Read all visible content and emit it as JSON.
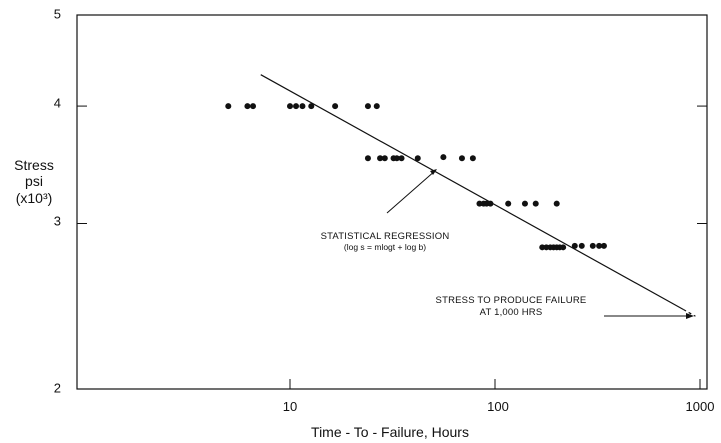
{
  "chart_data": {
    "type": "scatter",
    "xlabel": "Time - To - Failure, Hours",
    "ylabel_lines": [
      "Stress",
      "psi",
      "(x10³)"
    ],
    "x_scale": "log",
    "y_scale": "log",
    "xlim": [
      1,
      1000
    ],
    "ylim": [
      2,
      5
    ],
    "x_ticks": [
      10,
      100,
      1000
    ],
    "x_tick_labels": [
      "10",
      "100",
      "1000"
    ],
    "y_ticks": [
      2,
      3,
      4,
      5
    ],
    "y_tick_labels": [
      "2",
      "3",
      "4",
      "5"
    ],
    "grid": false,
    "series": [
      {
        "points": [
          [
            5.0,
            4.0
          ],
          [
            6.2,
            4.0
          ],
          [
            6.6,
            4.0
          ],
          [
            10.0,
            4.0
          ],
          [
            10.7,
            4.0
          ],
          [
            11.5,
            4.0
          ],
          [
            12.7,
            4.0
          ],
          [
            16.6,
            4.0
          ],
          [
            24.0,
            4.0
          ],
          [
            26.5,
            4.0
          ],
          [
            24.0,
            3.52
          ],
          [
            27.5,
            3.52
          ],
          [
            29.0,
            3.52
          ],
          [
            32.0,
            3.52
          ],
          [
            33.2,
            3.52
          ],
          [
            35.0,
            3.52
          ],
          [
            42.0,
            3.52
          ],
          [
            56.0,
            3.53
          ],
          [
            69.0,
            3.52
          ],
          [
            78.0,
            3.52
          ],
          [
            84.0,
            3.15
          ],
          [
            88.0,
            3.15
          ],
          [
            91.0,
            3.15
          ],
          [
            95.0,
            3.15
          ],
          [
            116.0,
            3.15
          ],
          [
            140.0,
            3.15
          ],
          [
            158.0,
            3.15
          ],
          [
            200.0,
            3.15
          ],
          [
            170.0,
            2.83
          ],
          [
            178.0,
            2.83
          ],
          [
            186.0,
            2.83
          ],
          [
            193.0,
            2.83
          ],
          [
            200.0,
            2.83
          ],
          [
            207.0,
            2.83
          ],
          [
            215.0,
            2.83
          ],
          [
            245.0,
            2.84
          ],
          [
            265.0,
            2.84
          ],
          [
            300.0,
            2.84
          ],
          [
            322.0,
            2.84
          ],
          [
            340.0,
            2.84
          ]
        ]
      }
    ],
    "regression_line": {
      "x": [
        7.2,
        830
      ],
      "y": [
        4.32,
        2.43
      ],
      "extension_x": [
        830,
        950
      ],
      "extension_y": [
        2.43,
        2.39
      ],
      "extension_style": "dashed"
    },
    "annotations": [
      {
        "lines": [
          "STATISTICAL REGRESSION",
          "(log s = mlogt + log b)"
        ],
        "arrow_to": [
          50,
          3.48
        ]
      },
      {
        "lines": [
          "STRESS TO PRODUCE FAILURE",
          "AT 1,000 HRS"
        ],
        "arrow_to": [
          940,
          2.39
        ]
      }
    ]
  }
}
